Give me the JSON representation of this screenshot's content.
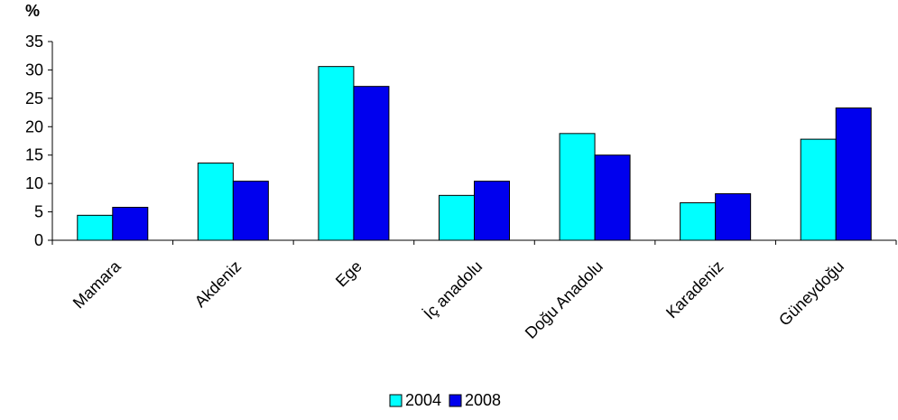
{
  "chart_data": {
    "type": "bar",
    "title": "",
    "ylabel": "%",
    "xlabel": "",
    "ylim": [
      0,
      35
    ],
    "yticks": [
      0,
      5,
      10,
      15,
      20,
      25,
      30,
      35
    ],
    "categories": [
      "Mamara",
      "Akdeniz",
      "Ege",
      "İç anadolu",
      "Doğu Anadolu",
      "Karadeniz",
      "Güneydoğu"
    ],
    "series": [
      {
        "name": "2004",
        "color": "#00ffff",
        "values": [
          4.4,
          13.6,
          30.6,
          7.9,
          18.8,
          6.6,
          17.8
        ]
      },
      {
        "name": "2008",
        "color": "#0000ee",
        "values": [
          5.8,
          10.4,
          27.1,
          10.4,
          15.0,
          8.2,
          23.3
        ]
      }
    ],
    "grid": false,
    "legend": "bottom-center"
  }
}
